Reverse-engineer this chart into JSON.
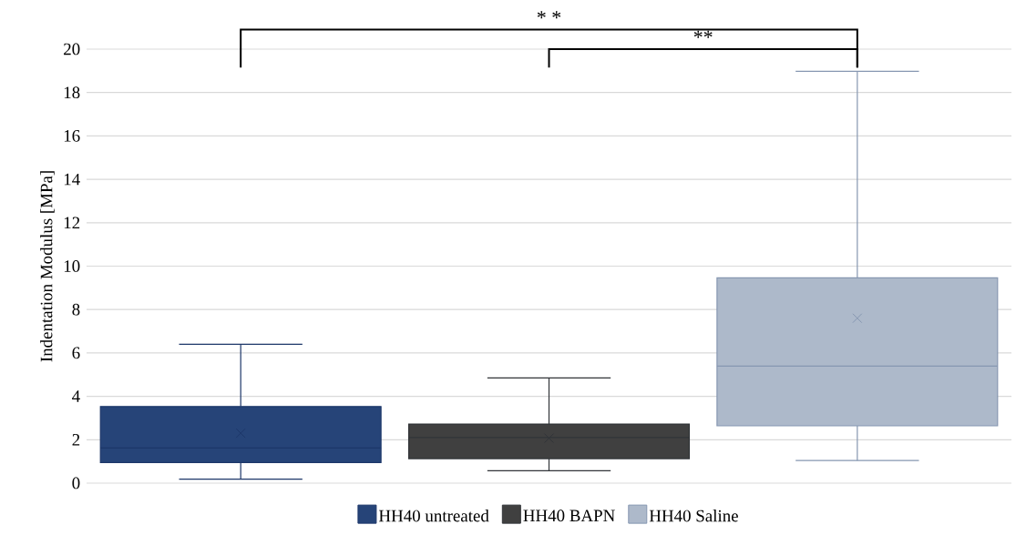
{
  "chart_data": {
    "type": "box",
    "ylabel": "Indentation Modulus [MPa]",
    "categories": [
      null
    ],
    "series": [
      {
        "name": "HH40 untreated",
        "color": "#264478",
        "boxes": [
          {
            "low": 0.18,
            "q1": 0.95,
            "median": 1.62,
            "q3": 3.53,
            "high": 6.4,
            "mean": 2.3
          }
        ]
      },
      {
        "name": "HH40 BAPN",
        "color": "#404040",
        "boxes": [
          {
            "low": 0.57,
            "q1": 1.13,
            "median": 2.1,
            "q3": 2.72,
            "high": 4.85,
            "mean": 2.07
          }
        ]
      },
      {
        "name": "HH40 Saline",
        "color": "#adb9ca",
        "boxes": [
          {
            "low": 1.04,
            "q1": 2.64,
            "median": 5.39,
            "q3": 9.46,
            "high": 18.98,
            "mean": 7.6
          }
        ]
      }
    ],
    "ylim": [
      0,
      20
    ],
    "yticks": [
      0,
      2,
      4,
      6,
      8,
      10,
      12,
      14,
      16,
      18,
      20
    ],
    "grid": "y",
    "legend": "bottom",
    "annotations": [
      "* *",
      "**"
    ]
  }
}
